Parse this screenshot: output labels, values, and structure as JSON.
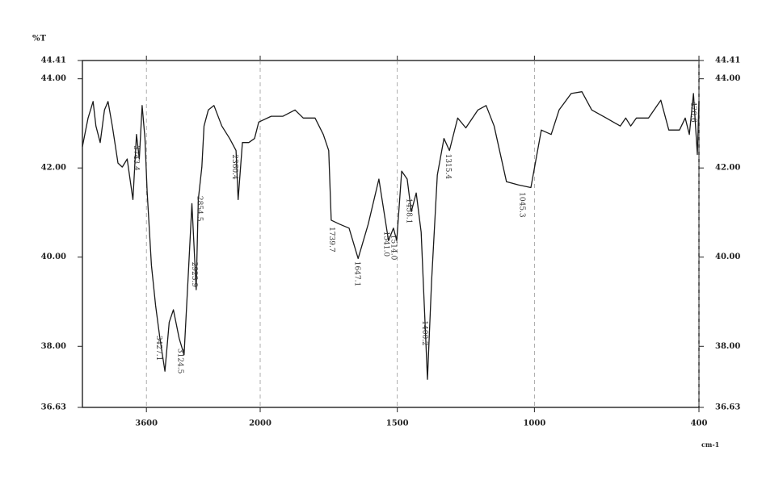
{
  "chart_data": {
    "type": "line",
    "y_axis_label": "%T",
    "x_axis_label": "cm-1",
    "color": "#1a1a1a",
    "grid": true,
    "x_scale_break": 2000,
    "xlim": [
      4500,
      400
    ],
    "xticks": [
      3600,
      2000,
      1500,
      1000,
      400
    ],
    "ylim": [
      36.63,
      44.41
    ],
    "yticks": [
      36.63,
      {
        "value": 38,
        "label": "38.00"
      },
      {
        "value": 40,
        "label": "40.00"
      },
      {
        "value": 42,
        "label": "42.00"
      },
      {
        "value": 44,
        "label": "44.00"
      },
      44.41
    ],
    "x": [
      4500,
      4420,
      4350,
      4310,
      4250,
      4190,
      4140,
      4080,
      4000,
      3940,
      3870,
      3790,
      3740,
      3700,
      3660,
      3620,
      3590,
      3530,
      3470,
      3410,
      3340,
      3280,
      3220,
      3140,
      3070,
      3010,
      2960,
      2900,
      2870,
      2820,
      2790,
      2730,
      2650,
      2540,
      2430,
      2340,
      2310,
      2250,
      2160,
      2080,
      2020,
      1960,
      1917,
      1873,
      1843,
      1800,
      1770,
      1750,
      1741,
      1711,
      1676,
      1643,
      1606,
      1567,
      1532,
      1514,
      1502,
      1484,
      1464,
      1449,
      1431,
      1413,
      1390,
      1375,
      1354,
      1330,
      1310,
      1280,
      1250,
      1206,
      1176,
      1147,
      1102,
      1058,
      1013,
      975,
      939,
      910,
      866,
      827,
      791,
      738,
      687,
      667,
      649,
      628,
      584,
      539,
      510,
      471,
      450,
      435,
      420,
      406,
      400
    ],
    "values": [
      42.48,
      43.12,
      43.49,
      42.94,
      42.57,
      43.3,
      43.49,
      42.94,
      42.11,
      42.02,
      42.2,
      41.29,
      42.75,
      42.2,
      43.4,
      42.66,
      41.47,
      39.82,
      38.91,
      38.18,
      37.44,
      38.54,
      38.82,
      38.18,
      37.81,
      39.64,
      41.2,
      39.27,
      41.29,
      42.02,
      42.94,
      43.3,
      43.4,
      42.94,
      42.66,
      42.39,
      41.29,
      42.57,
      42.57,
      42.66,
      43.03,
      43.16,
      43.16,
      43.3,
      43.12,
      43.12,
      42.75,
      42.39,
      40.83,
      40.74,
      40.65,
      39.97,
      40.74,
      41.75,
      40.37,
      40.65,
      40.37,
      41.93,
      41.75,
      41.02,
      41.44,
      40.56,
      37.26,
      39.46,
      41.84,
      42.66,
      42.39,
      43.12,
      42.9,
      43.3,
      43.4,
      42.94,
      41.69,
      41.62,
      41.56,
      42.85,
      42.75,
      43.3,
      43.67,
      43.71,
      43.3,
      43.12,
      42.94,
      43.12,
      42.94,
      43.12,
      43.12,
      43.52,
      42.85,
      42.85,
      43.12,
      42.75,
      43.67,
      42.3,
      43.49
    ],
    "peak_labels": [
      3743.4,
      3427.1,
      3124.5,
      2923.9,
      2854.5,
      2360.4,
      1739.7,
      1647.1,
      {
        "value": 1541,
        "label": "1541.0"
      },
      {
        "value": 1514,
        "label": "1514.0"
      },
      1458.1,
      1400.2,
      1315.4,
      1045.3,
      420.6
    ]
  }
}
